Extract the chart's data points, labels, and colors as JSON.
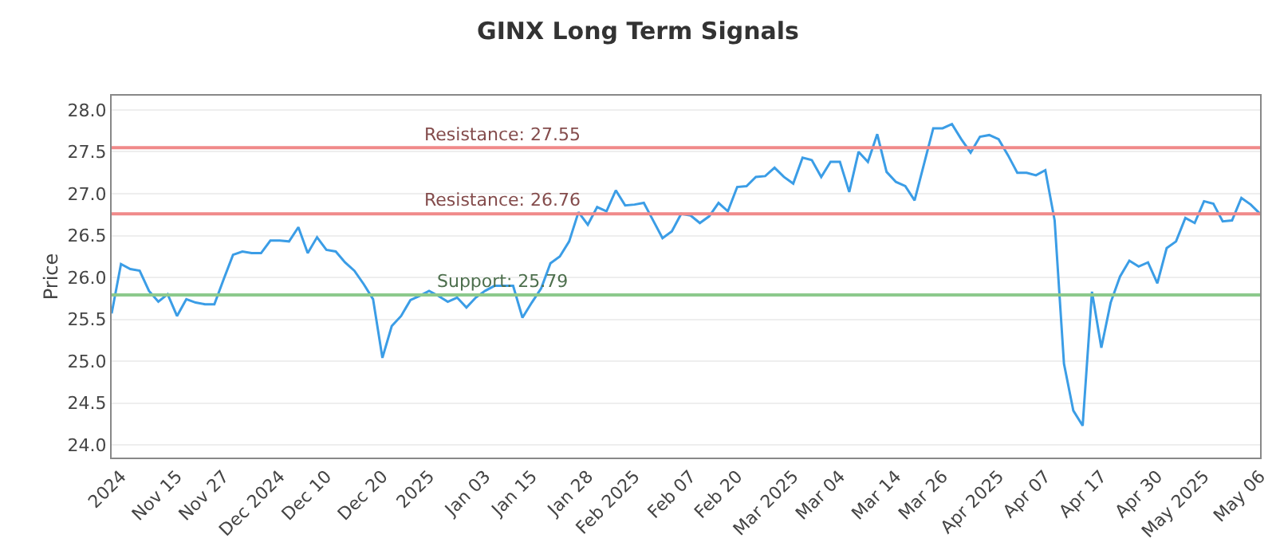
{
  "chart_data": {
    "type": "line",
    "title": "GINX Long Term Signals",
    "ylabel": "Price",
    "categories": [
      null,
      "2024",
      null,
      null,
      null,
      null,
      null,
      "Nov 15",
      null,
      null,
      null,
      null,
      "Nov 27",
      null,
      null,
      null,
      null,
      null,
      "Dec 2024",
      null,
      null,
      null,
      null,
      "Dec 10",
      null,
      null,
      null,
      null,
      null,
      "Dec 20",
      null,
      null,
      null,
      null,
      "2025",
      null,
      null,
      null,
      null,
      null,
      "Jan 03",
      null,
      null,
      null,
      null,
      "Jan 15",
      null,
      null,
      null,
      null,
      null,
      "Jan 28",
      null,
      null,
      null,
      null,
      "Feb 2025",
      null,
      null,
      null,
      null,
      null,
      "Feb 07",
      null,
      null,
      null,
      null,
      "Feb 20",
      null,
      null,
      null,
      null,
      null,
      "Mar 2025",
      null,
      null,
      null,
      null,
      "Mar 04",
      null,
      null,
      null,
      null,
      null,
      "Mar 14",
      null,
      null,
      null,
      null,
      "Mar 26",
      null,
      null,
      null,
      null,
      null,
      "Apr 2025",
      null,
      null,
      null,
      null,
      "Apr 07",
      null,
      null,
      null,
      null,
      null,
      "Apr 17",
      null,
      null,
      null,
      null,
      null,
      "Apr 30",
      null,
      null,
      null,
      null,
      "May 2025",
      null,
      null,
      null,
      null,
      null,
      "May 06"
    ],
    "series": [
      {
        "color": "#3b9de6",
        "values": [
          25.57,
          26.16,
          26.1,
          26.08,
          25.84,
          25.71,
          25.8,
          25.54,
          25.74,
          25.7,
          25.68,
          25.68,
          25.98,
          26.27,
          26.31,
          26.29,
          26.29,
          26.44,
          26.44,
          26.43,
          26.6,
          26.29,
          26.48,
          26.33,
          26.31,
          26.18,
          26.08,
          25.92,
          25.74,
          25.04,
          25.42,
          25.54,
          25.73,
          25.78,
          25.84,
          25.78,
          25.71,
          25.76,
          25.64,
          25.76,
          25.84,
          25.9,
          25.9,
          25.9,
          25.52,
          25.7,
          25.87,
          26.17,
          26.25,
          26.43,
          26.78,
          26.63,
          26.84,
          26.79,
          27.04,
          26.86,
          26.87,
          26.89,
          26.68,
          26.47,
          26.55,
          26.76,
          26.74,
          26.65,
          26.73,
          26.89,
          26.79,
          27.08,
          27.09,
          27.2,
          27.21,
          27.31,
          27.2,
          27.12,
          27.43,
          27.4,
          27.2,
          27.38,
          27.38,
          27.02,
          27.5,
          27.38,
          27.71,
          27.26,
          27.14,
          27.09,
          26.92,
          27.35,
          27.78,
          27.78,
          27.83,
          27.65,
          27.49,
          27.68,
          27.7,
          27.65,
          27.46,
          27.25,
          27.25,
          27.22,
          27.28,
          26.68,
          24.97,
          24.41,
          24.23,
          25.83,
          25.16,
          25.7,
          26.01,
          26.2,
          26.13,
          26.18,
          25.93,
          26.35,
          26.43,
          26.71,
          26.65,
          26.91,
          26.88,
          26.67,
          26.68,
          26.95,
          26.87,
          26.76
        ]
      }
    ],
    "ylim": [
      23.85,
      28.17
    ],
    "yticks": [
      {
        "value": 24,
        "label": "24.0"
      },
      {
        "value": 24.5,
        "label": "24.5"
      },
      {
        "value": 25,
        "label": "25.0"
      },
      {
        "value": 25.5,
        "label": "25.5"
      },
      {
        "value": 26,
        "label": "26.0"
      },
      {
        "value": 26.5,
        "label": "26.5"
      },
      {
        "value": 27,
        "label": "27.0"
      },
      {
        "value": 27.5,
        "label": "27.5"
      },
      {
        "value": 28,
        "label": "28.0"
      }
    ],
    "grid": "y",
    "marker": "none",
    "line_style": "solid",
    "ref_lines": [
      {
        "axis": "y",
        "value": 27.55,
        "label": "Resistance: 27.55",
        "color": "#f08a8a"
      },
      {
        "axis": "y",
        "value": 26.76,
        "label": "Resistance: 26.76",
        "color": "#f08a8a"
      },
      {
        "axis": "y",
        "value": 25.79,
        "label": "Support: 25.79",
        "color": "#8cc98c"
      }
    ]
  }
}
